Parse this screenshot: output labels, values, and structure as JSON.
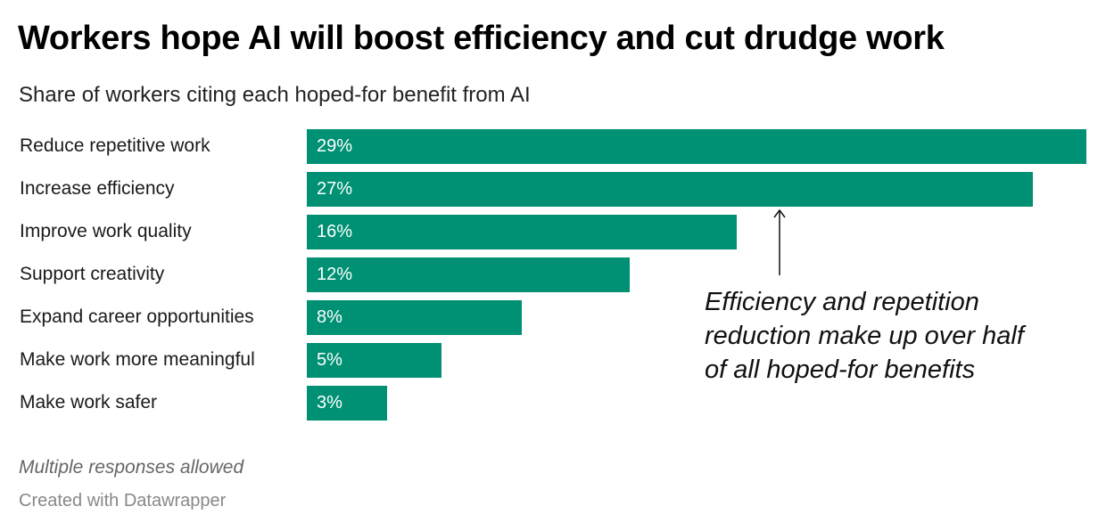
{
  "chart_data": {
    "type": "bar",
    "orientation": "horizontal",
    "title": "Workers hope AI will boost efficiency and cut drudge work",
    "subtitle": "Share of workers citing each hoped-for benefit from AI",
    "categories": [
      "Reduce repetitive work",
      "Increase efficiency",
      "Improve work quality",
      "Support creativity",
      "Expand career opportunities",
      "Make work more meaningful",
      "Make work safer"
    ],
    "values": [
      29,
      27,
      16,
      12,
      8,
      5,
      3
    ],
    "value_labels": [
      "29%",
      "27%",
      "16%",
      "12%",
      "8%",
      "5%",
      "3%"
    ],
    "xlim": [
      0,
      29
    ],
    "grid": false,
    "bar_color": "#009175",
    "annotation": "Efficiency and repetition reduction make up over half of all hoped-for benefits",
    "note": "Multiple responses allowed",
    "credit": "Created with Datawrapper"
  }
}
